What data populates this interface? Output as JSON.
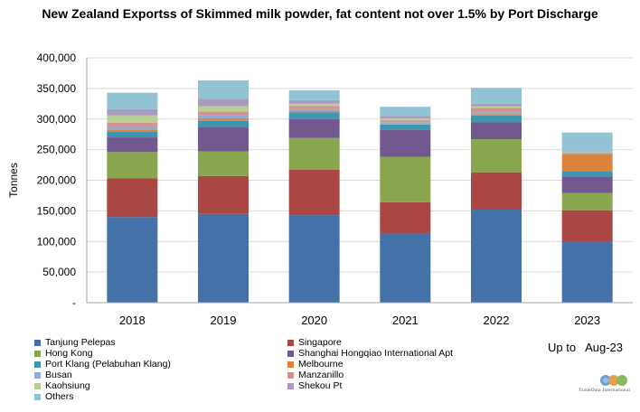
{
  "title": "New Zealand Exportss of Skimmed milk powder, fat content not over 1.5% by Port Discharge",
  "period_note": {
    "prefix": "Up to",
    "period": "Aug-23"
  },
  "logo": {
    "text": "TradeData International"
  },
  "chart_data": {
    "type": "bar",
    "stacked": true,
    "title": "New Zealand Exportss of Skimmed milk powder, fat content not over 1.5% by Port Discharge",
    "xlabel": "",
    "ylabel": "Tonnes",
    "ylim": [
      0,
      400000
    ],
    "yticks": [
      0,
      50000,
      100000,
      150000,
      200000,
      250000,
      300000,
      350000,
      400000
    ],
    "ytick_labels": [
      "-",
      "50,000",
      "100,000",
      "150,000",
      "200,000",
      "250,000",
      "300,000",
      "350,000",
      "400,000"
    ],
    "grid": true,
    "legend_position": "bottom",
    "categories": [
      "2018",
      "2019",
      "2020",
      "2021",
      "2022",
      "2023"
    ],
    "series": [
      {
        "name": "Tanjung Pelepas",
        "color": "#4472A8",
        "values": [
          140000,
          145000,
          143000,
          113000,
          152000,
          99000
        ]
      },
      {
        "name": "Singapore",
        "color": "#AA4643",
        "values": [
          63000,
          62000,
          74000,
          51000,
          61000,
          52000
        ]
      },
      {
        "name": "Hong Kong",
        "color": "#89A54E",
        "values": [
          43000,
          40000,
          52000,
          74000,
          54000,
          28000
        ]
      },
      {
        "name": "Shanghai Hongqiao International Apt",
        "color": "#71588F",
        "values": [
          24000,
          40000,
          31000,
          44000,
          28000,
          27000
        ]
      },
      {
        "name": "Port Klang (Pelabuhan Klang)",
        "color": "#3D96AE",
        "values": [
          9000,
          10000,
          11000,
          9000,
          11000,
          9000
        ]
      },
      {
        "name": "Melbourne",
        "color": "#DB843D",
        "values": [
          4000,
          4000,
          2000,
          1000,
          2000,
          28000
        ]
      },
      {
        "name": "Busan",
        "color": "#93A9CF",
        "values": [
          4000,
          5000,
          3000,
          2000,
          3000,
          1000
        ]
      },
      {
        "name": "Manzanillo",
        "color": "#D19392",
        "values": [
          7000,
          6000,
          5000,
          4000,
          7000,
          1000
        ]
      },
      {
        "name": "Kaohsiung",
        "color": "#B9CD96",
        "values": [
          12000,
          9000,
          4000,
          3000,
          3000,
          1000
        ]
      },
      {
        "name": "Shekou Pt",
        "color": "#A99BBD",
        "values": [
          10000,
          12000,
          6000,
          4000,
          4000,
          1000
        ]
      },
      {
        "name": "Others",
        "color": "#92C3D5",
        "values": [
          27000,
          30000,
          16000,
          15000,
          26000,
          31000
        ]
      }
    ]
  }
}
